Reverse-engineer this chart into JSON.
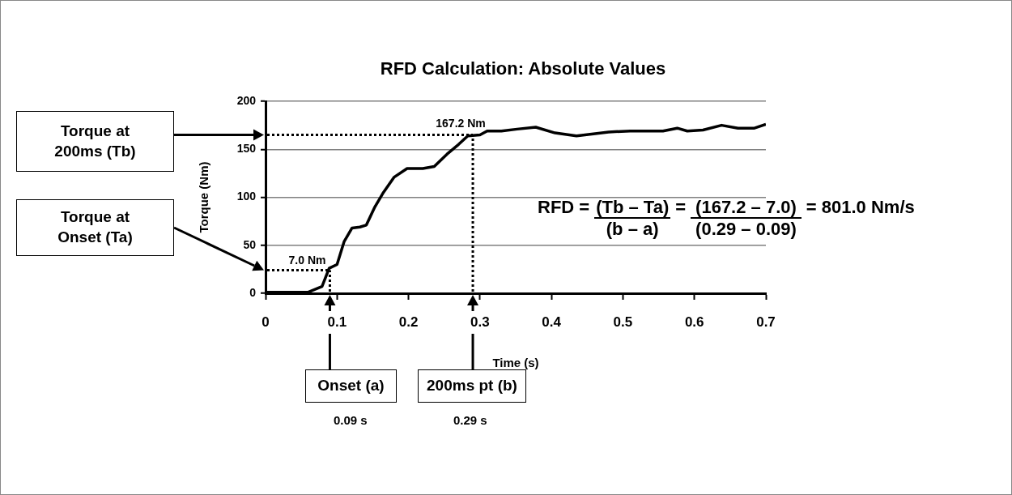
{
  "chart_data": {
    "type": "line",
    "title": "RFD Calculation: Absolute Values",
    "xlabel": "Time (s)",
    "ylabel": "Torque (Nm)",
    "x": [
      0,
      0.059,
      0.079,
      0.089,
      0.1,
      0.11,
      0.121,
      0.132,
      0.141,
      0.153,
      0.164,
      0.18,
      0.198,
      0.22,
      0.236,
      0.254,
      0.27,
      0.283,
      0.3,
      0.31,
      0.33,
      0.352,
      0.378,
      0.405,
      0.435,
      0.48,
      0.51,
      0.556,
      0.576,
      0.59,
      0.612,
      0.638,
      0.661,
      0.684,
      0.7
    ],
    "series": [
      {
        "color": "#000000",
        "values": [
          1,
          1,
          7,
          26,
          30,
          54,
          68,
          69,
          71,
          90,
          104,
          121,
          130,
          130,
          132,
          145,
          155,
          164,
          165,
          169,
          169,
          171,
          173,
          167,
          164,
          168,
          169,
          169,
          172,
          169,
          170,
          175,
          172,
          172,
          176
        ]
      }
    ],
    "xlim": [
      0,
      0.7
    ],
    "xticks": [
      0,
      0.1,
      0.2,
      0.3,
      0.4,
      0.5,
      0.6,
      0.7
    ],
    "ylim": [
      0,
      200
    ],
    "yticks": [
      0,
      50,
      100,
      150,
      200
    ],
    "ref_lines": [
      {
        "axis": "x",
        "value": 0.09,
        "color": "#000000",
        "line_style": "dotted"
      },
      {
        "axis": "x",
        "value": 0.29,
        "color": "#000000",
        "line_style": "dotted"
      },
      {
        "axis": "y",
        "value": 24,
        "color": "#000000",
        "line_style": "dotted"
      },
      {
        "axis": "y",
        "value": 165,
        "color": "#000000",
        "line_style": "dotted"
      }
    ],
    "grid": "y",
    "legend": false,
    "marker": "none",
    "line_style": "solid",
    "annotations": [
      "Torque at 200ms (Tb)",
      "Torque at Onset (Ta)",
      "Onset (a)",
      "200ms pt (b)",
      "0.09 s",
      "0.29 s",
      {
        "text": "7.0 Nm",
        "x": 0.09,
        "y": 24
      },
      {
        "text": "167.2 Nm",
        "x": 0.29,
        "y": 165
      },
      "RFD =",
      "(Tb – Ta)",
      "(b – a)",
      "=",
      "(167.2 – 7.0)",
      "(0.29 – 0.09)",
      "= 801.0 Nm/s"
    ]
  }
}
